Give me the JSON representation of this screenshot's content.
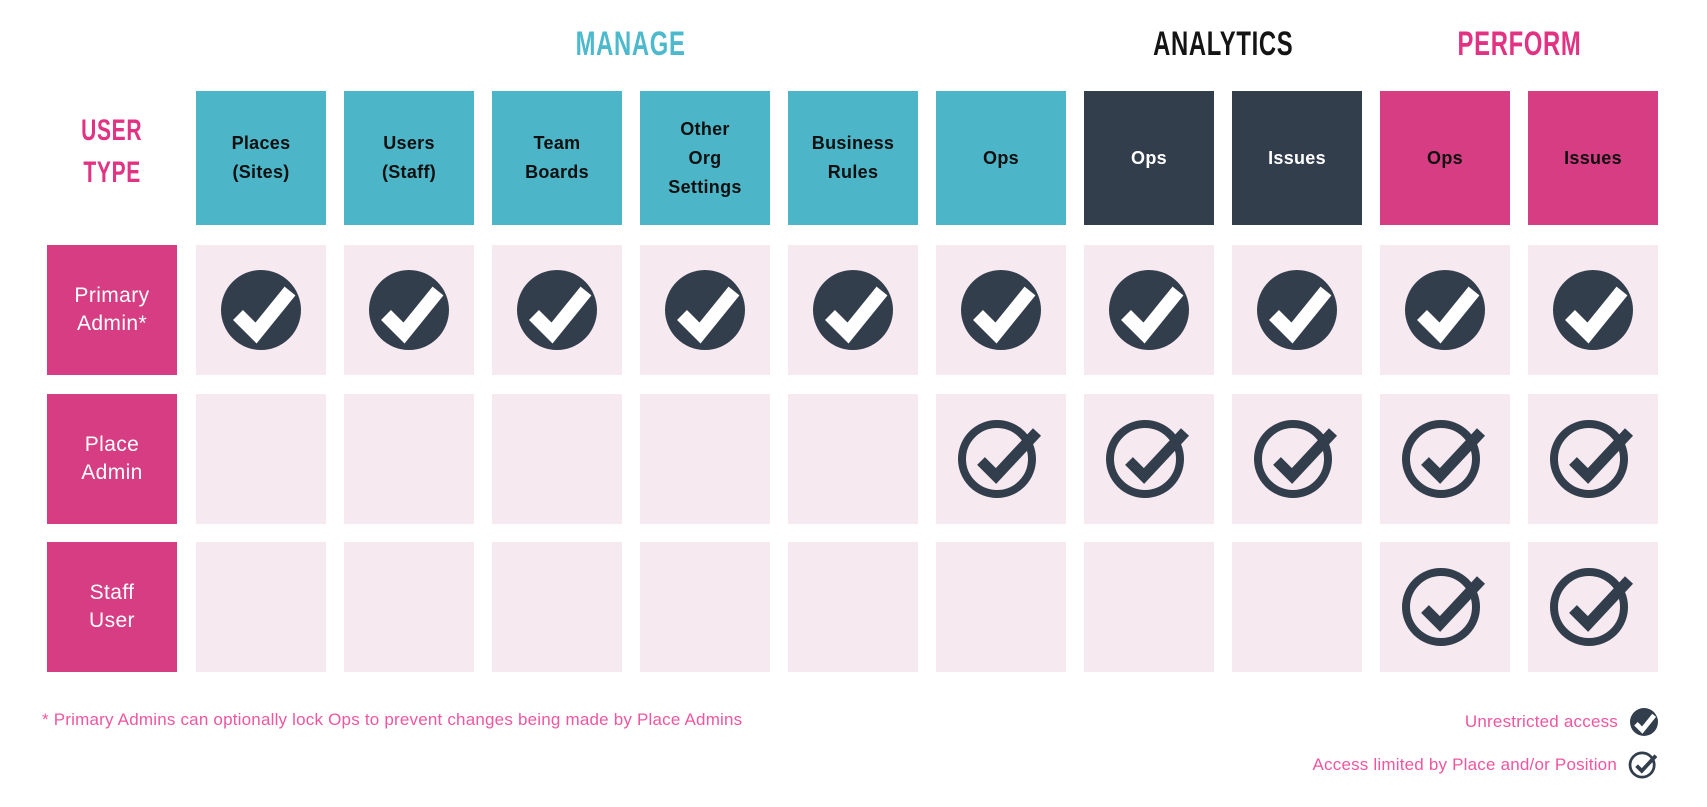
{
  "palette": {
    "teal": "#4cb5c8",
    "navy": "#333e4d",
    "pink": "#d63d82",
    "cell_pink": "#f7e9f0",
    "manage_text": "#4cb9cd",
    "analytics_text": "#141414",
    "perform_text": "#e23383",
    "user_type_text": "#e23383",
    "footnote_pink": "#f0569e",
    "box_text_dark": "#101010",
    "box_text_light": "#ffffff",
    "check_white": "#ffffff"
  },
  "group_headers": [
    {
      "label": "MANAGE",
      "color": "#4cb9cd",
      "col_start": 0,
      "col_span": 6
    },
    {
      "label": "ANALYTICS",
      "color": "#141414",
      "col_start": 6,
      "col_span": 2
    },
    {
      "label": "PERFORM",
      "color": "#e23383",
      "col_start": 8,
      "col_span": 2
    }
  ],
  "corner": {
    "label": "USER TYPE",
    "lines": [
      "USER",
      "TYPE"
    ]
  },
  "columns": [
    {
      "label": "Places (Sites)",
      "lines": [
        "Places",
        "(Sites)"
      ],
      "group": "MANAGE",
      "theme": "teal"
    },
    {
      "label": "Users (Staff)",
      "lines": [
        "Users",
        "(Staff)"
      ],
      "group": "MANAGE",
      "theme": "teal"
    },
    {
      "label": "Team Boards",
      "lines": [
        "Team",
        "Boards"
      ],
      "group": "MANAGE",
      "theme": "teal"
    },
    {
      "label": "Other Org Settings",
      "lines": [
        "Other",
        "Org",
        "Settings"
      ],
      "group": "MANAGE",
      "theme": "teal"
    },
    {
      "label": "Business Rules",
      "lines": [
        "Business",
        "Rules"
      ],
      "group": "MANAGE",
      "theme": "teal"
    },
    {
      "label": "Ops",
      "lines": [
        "Ops"
      ],
      "group": "MANAGE",
      "theme": "teal"
    },
    {
      "label": "Ops",
      "lines": [
        "Ops"
      ],
      "group": "ANALYTICS",
      "theme": "dark"
    },
    {
      "label": "Issues",
      "lines": [
        "Issues"
      ],
      "group": "ANALYTICS",
      "theme": "dark"
    },
    {
      "label": "Ops",
      "lines": [
        "Ops"
      ],
      "group": "PERFORM",
      "theme": "pink"
    },
    {
      "label": "Issues",
      "lines": [
        "Issues"
      ],
      "group": "PERFORM",
      "theme": "pink"
    }
  ],
  "rows": [
    {
      "label": "Primary Admin*",
      "lines": [
        "Primary",
        "Admin*"
      ],
      "access": [
        "full",
        "full",
        "full",
        "full",
        "full",
        "full",
        "full",
        "full",
        "full",
        "full"
      ]
    },
    {
      "label": "Place Admin",
      "lines": [
        "Place",
        "Admin"
      ],
      "access": [
        "none",
        "none",
        "none",
        "none",
        "none",
        "limited",
        "limited",
        "limited",
        "limited",
        "limited"
      ]
    },
    {
      "label": "Staff User",
      "lines": [
        "Staff",
        "User"
      ],
      "access": [
        "none",
        "none",
        "none",
        "none",
        "none",
        "none",
        "none",
        "none",
        "limited",
        "limited"
      ]
    }
  ],
  "footnote": "* Primary Admins can optionally lock Ops to prevent changes being made by Place Admins",
  "legend": [
    {
      "label": "Unrestricted access",
      "icon": "full"
    },
    {
      "label": "Access limited by Place and/or Position",
      "icon": "limited"
    }
  ]
}
